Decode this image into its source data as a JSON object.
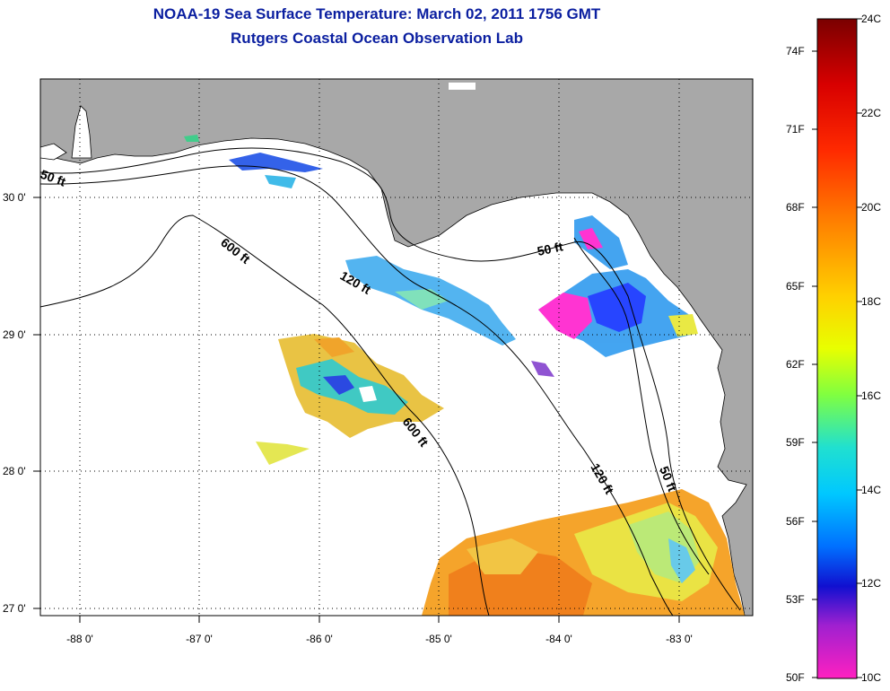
{
  "header": {
    "title": "NOAA-19 Sea Surface Temperature:  March 02, 2011 1756 GMT",
    "subtitle": "Rutgers Coastal Ocean Observation Lab"
  },
  "map": {
    "lon_ticks": [
      "-88 0'",
      "-87 0'",
      "-86 0'",
      "-85 0'",
      "-84 0'",
      "-83 0'"
    ],
    "lat_ticks": [
      "30 0'",
      "29 0'",
      "28 0'",
      "27 0'"
    ],
    "contour_labels": {
      "ft50_west": "50 ft",
      "ft600_north": "600 ft",
      "ft120_north": "120 ft",
      "ft50_bigbend": "50 ft",
      "ft600_south": "600 ft",
      "ft120_south": "120 ft",
      "ft50_south": "50 ft"
    },
    "colors": {
      "land": "#a8a8a8",
      "ocean": "#ffffff",
      "grid": "#000000"
    }
  },
  "colorbar": {
    "fahrenheit_labels": [
      "74F",
      "71F",
      "68F",
      "65F",
      "62F",
      "59F",
      "56F",
      "53F",
      "50F"
    ],
    "celsius_labels": [
      "24C",
      "22C",
      "20C",
      "18C",
      "16C",
      "14C",
      "12C",
      "10C"
    ]
  }
}
